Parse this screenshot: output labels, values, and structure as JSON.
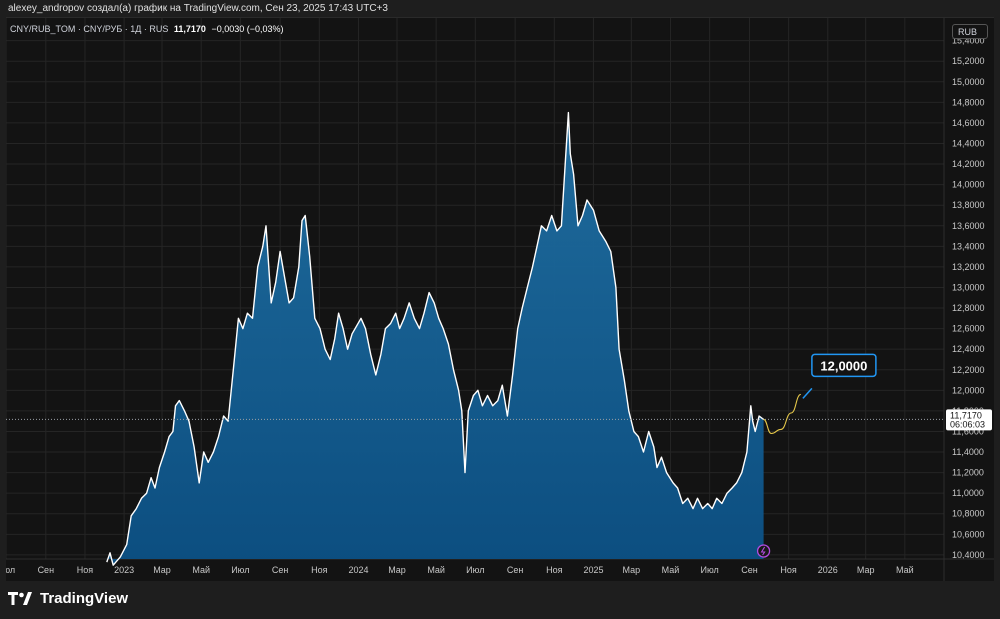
{
  "header": {
    "author_line": "alexey_andropov создал(а) график на TradingView.com, Сен 23, 2025 17:43 UTC+3"
  },
  "legend": {
    "symbol": "CNY/RUB_TOM · CNY/РУБ · 1Д · RUS",
    "last": "11,7170",
    "change": "−0,0030 (−0,03%)"
  },
  "currency_label": "RUB",
  "price_label": {
    "value": "11,7170",
    "countdown": "06:06:03"
  },
  "annotation": {
    "text": "12,0000"
  },
  "footer": {
    "brand": "TradingView"
  },
  "colors": {
    "line": "#ffffff",
    "area_top": "#1f6fa3",
    "area_bottom": "#0c4e80",
    "price_line": "#9aa0a6",
    "annotation_border": "#2196f3",
    "projection": "#e6c84a",
    "event_marker": "#b44be1"
  },
  "chart_data": {
    "type": "area",
    "title": "",
    "xlabel": "",
    "ylabel": "",
    "y_axis_position": "right",
    "grid": true,
    "ylim": [
      10.36,
      15.62
    ],
    "y_ticks": [
      "10,4000",
      "10,6000",
      "10,8000",
      "11,0000",
      "11,2000",
      "11,4000",
      "11,6000",
      "11,8000",
      "12,0000",
      "12,2000",
      "12,4000",
      "12,6000",
      "12,8000",
      "13,0000",
      "13,2000",
      "13,4000",
      "13,6000",
      "13,8000",
      "14,0000",
      "14,2000",
      "14,4000",
      "14,6000",
      "14,8000",
      "15,0000",
      "15,2000",
      "15,4000"
    ],
    "x_range": [
      "2022-07-01",
      "2026-07-01"
    ],
    "x_ticks": [
      {
        "label": "Июл",
        "date": "2022-07-01"
      },
      {
        "label": "Сен",
        "date": "2022-09-01"
      },
      {
        "label": "Ноя",
        "date": "2022-11-01"
      },
      {
        "label": "2023",
        "date": "2023-01-01"
      },
      {
        "label": "Мар",
        "date": "2023-03-01"
      },
      {
        "label": "Май",
        "date": "2023-05-01"
      },
      {
        "label": "Июл",
        "date": "2023-07-01"
      },
      {
        "label": "Сен",
        "date": "2023-09-01"
      },
      {
        "label": "Ноя",
        "date": "2023-11-01"
      },
      {
        "label": "2024",
        "date": "2024-01-01"
      },
      {
        "label": "Мар",
        "date": "2024-03-01"
      },
      {
        "label": "Май",
        "date": "2024-05-01"
      },
      {
        "label": "Июл",
        "date": "2024-07-01"
      },
      {
        "label": "Сен",
        "date": "2024-09-01"
      },
      {
        "label": "Ноя",
        "date": "2024-11-01"
      },
      {
        "label": "2025",
        "date": "2025-01-01"
      },
      {
        "label": "Мар",
        "date": "2025-03-01"
      },
      {
        "label": "Май",
        "date": "2025-05-01"
      },
      {
        "label": "Июл",
        "date": "2025-07-01"
      },
      {
        "label": "Сен",
        "date": "2025-09-01"
      },
      {
        "label": "Ноя",
        "date": "2025-11-01"
      },
      {
        "label": "2026",
        "date": "2026-01-01"
      },
      {
        "label": "Мар",
        "date": "2026-03-01"
      },
      {
        "label": "Май",
        "date": "2026-05-01"
      }
    ],
    "series": [
      {
        "points": [
          [
            "2022-12-05",
            10.33
          ],
          [
            "2022-12-10",
            10.42
          ],
          [
            "2022-12-15",
            10.3
          ],
          [
            "2022-12-26",
            10.38
          ],
          [
            "2023-01-05",
            10.5
          ],
          [
            "2023-01-12",
            10.78
          ],
          [
            "2023-01-20",
            10.85
          ],
          [
            "2023-01-28",
            10.95
          ],
          [
            "2023-02-05",
            11.0
          ],
          [
            "2023-02-12",
            11.15
          ],
          [
            "2023-02-18",
            11.05
          ],
          [
            "2023-02-25",
            11.25
          ],
          [
            "2023-03-05",
            11.4
          ],
          [
            "2023-03-12",
            11.55
          ],
          [
            "2023-03-18",
            11.6
          ],
          [
            "2023-03-22",
            11.85
          ],
          [
            "2023-03-28",
            11.9
          ],
          [
            "2023-04-05",
            11.8
          ],
          [
            "2023-04-12",
            11.7
          ],
          [
            "2023-04-20",
            11.45
          ],
          [
            "2023-04-28",
            11.1
          ],
          [
            "2023-05-05",
            11.4
          ],
          [
            "2023-05-12",
            11.3
          ],
          [
            "2023-05-20",
            11.4
          ],
          [
            "2023-05-28",
            11.55
          ],
          [
            "2023-06-05",
            11.75
          ],
          [
            "2023-06-12",
            11.7
          ],
          [
            "2023-06-20",
            12.2
          ],
          [
            "2023-06-28",
            12.7
          ],
          [
            "2023-07-05",
            12.6
          ],
          [
            "2023-07-12",
            12.75
          ],
          [
            "2023-07-20",
            12.7
          ],
          [
            "2023-07-28",
            13.2
          ],
          [
            "2023-08-05",
            13.4
          ],
          [
            "2023-08-10",
            13.6
          ],
          [
            "2023-08-18",
            12.85
          ],
          [
            "2023-08-25",
            13.05
          ],
          [
            "2023-09-01",
            13.35
          ],
          [
            "2023-09-08",
            13.1
          ],
          [
            "2023-09-15",
            12.85
          ],
          [
            "2023-09-22",
            12.9
          ],
          [
            "2023-09-30",
            13.2
          ],
          [
            "2023-10-05",
            13.65
          ],
          [
            "2023-10-10",
            13.7
          ],
          [
            "2023-10-17",
            13.3
          ],
          [
            "2023-10-25",
            12.7
          ],
          [
            "2023-11-02",
            12.6
          ],
          [
            "2023-11-10",
            12.4
          ],
          [
            "2023-11-18",
            12.3
          ],
          [
            "2023-11-25",
            12.5
          ],
          [
            "2023-12-01",
            12.75
          ],
          [
            "2023-12-08",
            12.6
          ],
          [
            "2023-12-15",
            12.4
          ],
          [
            "2023-12-22",
            12.55
          ],
          [
            "2024-01-05",
            12.7
          ],
          [
            "2024-01-12",
            12.6
          ],
          [
            "2024-01-20",
            12.35
          ],
          [
            "2024-01-28",
            12.15
          ],
          [
            "2024-02-05",
            12.35
          ],
          [
            "2024-02-12",
            12.6
          ],
          [
            "2024-02-20",
            12.65
          ],
          [
            "2024-02-28",
            12.75
          ],
          [
            "2024-03-05",
            12.6
          ],
          [
            "2024-03-12",
            12.7
          ],
          [
            "2024-03-20",
            12.85
          ],
          [
            "2024-03-28",
            12.7
          ],
          [
            "2024-04-05",
            12.6
          ],
          [
            "2024-04-12",
            12.75
          ],
          [
            "2024-04-20",
            12.95
          ],
          [
            "2024-04-28",
            12.85
          ],
          [
            "2024-05-05",
            12.7
          ],
          [
            "2024-05-12",
            12.6
          ],
          [
            "2024-05-20",
            12.45
          ],
          [
            "2024-05-28",
            12.2
          ],
          [
            "2024-06-05",
            12.0
          ],
          [
            "2024-06-10",
            11.8
          ],
          [
            "2024-06-15",
            11.2
          ],
          [
            "2024-06-20",
            11.8
          ],
          [
            "2024-06-28",
            11.95
          ],
          [
            "2024-07-05",
            12.0
          ],
          [
            "2024-07-12",
            11.85
          ],
          [
            "2024-07-20",
            11.95
          ],
          [
            "2024-07-28",
            11.85
          ],
          [
            "2024-08-05",
            11.9
          ],
          [
            "2024-08-12",
            12.05
          ],
          [
            "2024-08-20",
            11.75
          ],
          [
            "2024-08-28",
            12.15
          ],
          [
            "2024-09-05",
            12.6
          ],
          [
            "2024-09-12",
            12.8
          ],
          [
            "2024-09-20",
            13.0
          ],
          [
            "2024-09-28",
            13.2
          ],
          [
            "2024-10-05",
            13.4
          ],
          [
            "2024-10-12",
            13.6
          ],
          [
            "2024-10-20",
            13.55
          ],
          [
            "2024-10-28",
            13.7
          ],
          [
            "2024-11-05",
            13.55
          ],
          [
            "2024-11-12",
            13.6
          ],
          [
            "2024-11-18",
            14.2
          ],
          [
            "2024-11-23",
            14.7
          ],
          [
            "2024-11-26",
            14.3
          ],
          [
            "2024-12-01",
            14.1
          ],
          [
            "2024-12-08",
            13.6
          ],
          [
            "2024-12-15",
            13.7
          ],
          [
            "2024-12-22",
            13.85
          ],
          [
            "2025-01-01",
            13.75
          ],
          [
            "2025-01-10",
            13.55
          ],
          [
            "2025-01-20",
            13.45
          ],
          [
            "2025-01-28",
            13.35
          ],
          [
            "2025-02-05",
            13.0
          ],
          [
            "2025-02-10",
            12.4
          ],
          [
            "2025-02-18",
            12.1
          ],
          [
            "2025-02-25",
            11.8
          ],
          [
            "2025-03-05",
            11.6
          ],
          [
            "2025-03-12",
            11.55
          ],
          [
            "2025-03-20",
            11.4
          ],
          [
            "2025-03-28",
            11.6
          ],
          [
            "2025-04-05",
            11.45
          ],
          [
            "2025-04-10",
            11.25
          ],
          [
            "2025-04-17",
            11.35
          ],
          [
            "2025-04-25",
            11.2
          ],
          [
            "2025-05-05",
            11.1
          ],
          [
            "2025-05-12",
            11.05
          ],
          [
            "2025-05-20",
            10.9
          ],
          [
            "2025-05-28",
            10.95
          ],
          [
            "2025-06-05",
            10.85
          ],
          [
            "2025-06-12",
            10.95
          ],
          [
            "2025-06-20",
            10.85
          ],
          [
            "2025-06-28",
            10.9
          ],
          [
            "2025-07-05",
            10.85
          ],
          [
            "2025-07-12",
            10.95
          ],
          [
            "2025-07-20",
            10.9
          ],
          [
            "2025-07-28",
            11.0
          ],
          [
            "2025-08-05",
            11.05
          ],
          [
            "2025-08-12",
            11.1
          ],
          [
            "2025-08-20",
            11.2
          ],
          [
            "2025-08-28",
            11.4
          ],
          [
            "2025-09-03",
            11.85
          ],
          [
            "2025-09-06",
            11.7
          ],
          [
            "2025-09-10",
            11.6
          ],
          [
            "2025-09-16",
            11.75
          ],
          [
            "2025-09-23",
            11.717
          ]
        ]
      }
    ],
    "last_value": 11.717,
    "annotation": {
      "date": "2025-12-01",
      "value": 12.0
    },
    "projection": [
      [
        "2025-09-23",
        11.717
      ],
      [
        "2025-10-05",
        11.58
      ],
      [
        "2025-10-20",
        11.62
      ],
      [
        "2025-11-05",
        11.78
      ],
      [
        "2025-11-20",
        11.96
      ]
    ],
    "event_marker": {
      "date": "2025-09-23"
    }
  }
}
